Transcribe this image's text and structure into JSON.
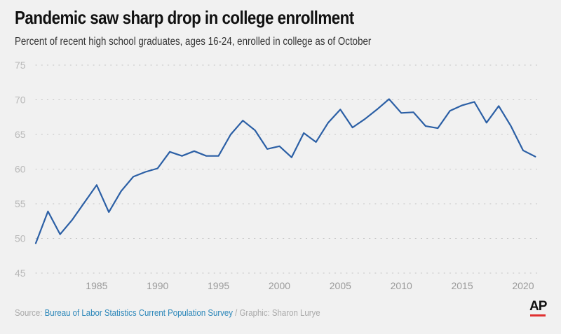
{
  "header": {
    "title": "Pandemic saw sharp drop in college enrollment",
    "subtitle": "Percent of recent high school graduates, ages 16-24, enrolled in college as of October"
  },
  "footer": {
    "source_prefix": "Source: ",
    "source_name": "Bureau of Labor Statistics Current Population Survey",
    "credit": " / Graphic: Sharon Lurye"
  },
  "logo": {
    "text": "AP",
    "accent": "#e03030"
  },
  "colors": {
    "line": "#2b5fa5",
    "grid": "#c4c4c4",
    "background": "#f1f1f1"
  },
  "chart_data": {
    "type": "line",
    "title": "Pandemic saw sharp drop in college enrollment",
    "subtitle": "Percent of recent high school graduates, ages 16-24, enrolled in college as of October",
    "xlabel": "",
    "ylabel": "",
    "ylim": [
      45,
      75
    ],
    "xlim": [
      1980,
      2021.5
    ],
    "yticks": [
      45,
      50,
      55,
      60,
      65,
      70,
      75
    ],
    "xticks": [
      1985,
      1990,
      1995,
      2000,
      2005,
      2010,
      2015,
      2020
    ],
    "grid": true,
    "x": [
      1980,
      1981,
      1982,
      1983,
      1984,
      1985,
      1986,
      1987,
      1988,
      1989,
      1990,
      1991,
      1992,
      1993,
      1994,
      1995,
      1996,
      1997,
      1998,
      1999,
      2000,
      2001,
      2002,
      2003,
      2004,
      2005,
      2006,
      2007,
      2008,
      2009,
      2010,
      2011,
      2012,
      2013,
      2014,
      2015,
      2016,
      2017,
      2018,
      2019,
      2020,
      2021
    ],
    "values": [
      49.3,
      53.9,
      50.6,
      52.7,
      55.2,
      57.7,
      53.8,
      56.8,
      58.9,
      59.6,
      60.1,
      62.5,
      61.9,
      62.6,
      61.9,
      61.9,
      65.0,
      67.0,
      65.6,
      62.9,
      63.3,
      61.7,
      65.2,
      63.9,
      66.7,
      68.6,
      66.0,
      67.2,
      68.6,
      70.1,
      68.1,
      68.2,
      66.2,
      65.9,
      68.4,
      69.2,
      69.7,
      66.7,
      69.1,
      66.2,
      62.7,
      61.8
    ]
  }
}
